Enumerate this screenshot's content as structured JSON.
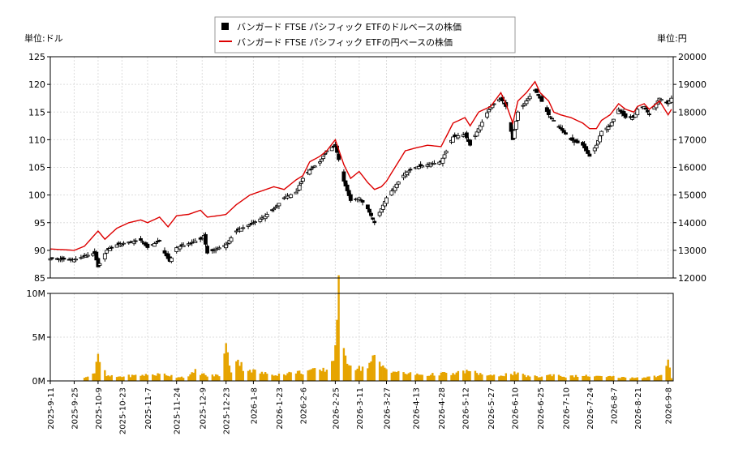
{
  "chart_data": [
    {
      "type": "candlestick",
      "left_unit_label": "単位:ドル",
      "right_unit_label": "単位:円",
      "ylim_left": [
        85,
        125
      ],
      "ylim_right": [
        12000,
        20000
      ],
      "yticks_left": [
        85,
        90,
        95,
        100,
        105,
        110,
        115,
        120,
        125
      ],
      "yticks_right": [
        12000,
        13000,
        14000,
        15000,
        16000,
        17000,
        18000,
        19000,
        20000
      ],
      "legend_placement": "top-center",
      "grid": true,
      "legend": [
        {
          "label": "バンガード FTSE パシフィック ETFのドルベースの株価",
          "color": "#000000",
          "marker": "square"
        },
        {
          "label": "バンガード FTSE パシフィック ETFの円ベースの株価",
          "color": "#dd0000",
          "marker": "line"
        }
      ],
      "usd_price_points": [
        [
          "2025-09-11",
          88.5
        ],
        [
          "2025-09-25",
          88.3
        ],
        [
          "2025-10-07",
          89.5
        ],
        [
          "2025-10-09",
          87.0
        ],
        [
          "2025-10-14",
          90.0
        ],
        [
          "2025-10-20",
          91.0
        ],
        [
          "2025-10-27",
          91.5
        ],
        [
          "2025-11-03",
          91.8
        ],
        [
          "2025-11-07",
          90.5
        ],
        [
          "2025-11-14",
          91.8
        ],
        [
          "2025-11-17",
          89.5
        ],
        [
          "2025-11-20",
          88.0
        ],
        [
          "2025-11-24",
          90.5
        ],
        [
          "2025-12-01",
          91.2
        ],
        [
          "2025-12-08",
          92.0
        ],
        [
          "2025-12-10",
          92.7
        ],
        [
          "2025-12-12",
          89.5
        ],
        [
          "2025-12-23",
          91.0
        ],
        [
          "2025-12-29",
          93.5
        ],
        [
          "2026-01-08",
          95.0
        ],
        [
          "2026-01-14",
          96.0
        ],
        [
          "2026-01-20",
          97.5
        ],
        [
          "2026-01-26",
          99.5
        ],
        [
          "2026-02-02",
          100.5
        ],
        [
          "2026-02-06",
          103.0
        ],
        [
          "2026-02-10",
          104.5
        ],
        [
          "2026-02-16",
          106.0
        ],
        [
          "2026-02-20",
          108.0
        ],
        [
          "2026-02-25",
          109.0
        ],
        [
          "2026-03-02",
          102.5
        ],
        [
          "2026-03-06",
          99.0
        ],
        [
          "2026-03-11",
          99.5
        ],
        [
          "2026-03-16",
          97.5
        ],
        [
          "2026-03-20",
          95.0
        ],
        [
          "2026-03-24",
          97.5
        ],
        [
          "2026-03-27",
          99.5
        ],
        [
          "2026-04-07",
          104.0
        ],
        [
          "2026-04-13",
          105.0
        ],
        [
          "2026-04-20",
          105.5
        ],
        [
          "2026-04-28",
          106.0
        ],
        [
          "2026-05-05",
          110.5
        ],
        [
          "2026-05-12",
          111.0
        ],
        [
          "2026-05-15",
          109.0
        ],
        [
          "2026-05-20",
          112.0
        ],
        [
          "2026-05-27",
          116.0
        ],
        [
          "2026-06-02",
          117.5
        ],
        [
          "2026-06-05",
          116.0
        ],
        [
          "2026-06-09",
          110.0
        ],
        [
          "2026-06-12",
          115.0
        ],
        [
          "2026-06-17",
          117.0
        ],
        [
          "2026-06-22",
          119.0
        ],
        [
          "2026-06-25",
          117.5
        ],
        [
          "2026-06-30",
          114.5
        ],
        [
          "2026-07-03",
          113.5
        ],
        [
          "2026-07-07",
          112.0
        ],
        [
          "2026-07-13",
          110.0
        ],
        [
          "2026-07-20",
          109.0
        ],
        [
          "2026-07-24",
          107.0
        ],
        [
          "2026-07-28",
          109.0
        ],
        [
          "2026-07-31",
          111.5
        ],
        [
          "2026-08-05",
          112.5
        ],
        [
          "2026-08-10",
          115.5
        ],
        [
          "2026-08-14",
          114.0
        ],
        [
          "2026-08-19",
          114.0
        ],
        [
          "2026-08-21",
          115.5
        ],
        [
          "2026-08-25",
          116.0
        ],
        [
          "2026-08-28",
          114.5
        ],
        [
          "2026-09-03",
          117.5
        ],
        [
          "2026-09-08",
          116.5
        ],
        [
          "2026-09-10",
          117.5
        ]
      ],
      "jpy_price_points": [
        [
          "2025-09-11",
          13050
        ],
        [
          "2025-09-25",
          13000
        ],
        [
          "2025-10-01",
          13150
        ],
        [
          "2025-10-09",
          13700
        ],
        [
          "2025-10-13",
          13400
        ],
        [
          "2025-10-20",
          13800
        ],
        [
          "2025-10-27",
          14000
        ],
        [
          "2025-11-03",
          14100
        ],
        [
          "2025-11-07",
          14000
        ],
        [
          "2025-11-14",
          14200
        ],
        [
          "2025-11-19",
          13850
        ],
        [
          "2025-11-24",
          14250
        ],
        [
          "2025-12-01",
          14300
        ],
        [
          "2025-12-08",
          14450
        ],
        [
          "2025-12-12",
          14200
        ],
        [
          "2025-12-18",
          14250
        ],
        [
          "2025-12-23",
          14300
        ],
        [
          "2025-12-29",
          14650
        ],
        [
          "2026-01-06",
          15000
        ],
        [
          "2026-01-13",
          15150
        ],
        [
          "2026-01-20",
          15300
        ],
        [
          "2026-01-26",
          15200
        ],
        [
          "2026-02-02",
          15550
        ],
        [
          "2026-02-06",
          15700
        ],
        [
          "2026-02-10",
          16200
        ],
        [
          "2026-02-16",
          16400
        ],
        [
          "2026-02-20",
          16600
        ],
        [
          "2026-02-25",
          17000
        ],
        [
          "2026-03-02",
          16100
        ],
        [
          "2026-03-06",
          15600
        ],
        [
          "2026-03-11",
          15850
        ],
        [
          "2026-03-16",
          15450
        ],
        [
          "2026-03-20",
          15200
        ],
        [
          "2026-03-24",
          15300
        ],
        [
          "2026-03-27",
          15500
        ],
        [
          "2026-04-07",
          16600
        ],
        [
          "2026-04-13",
          16700
        ],
        [
          "2026-04-20",
          16800
        ],
        [
          "2026-04-28",
          16750
        ],
        [
          "2026-05-05",
          17600
        ],
        [
          "2026-05-12",
          17800
        ],
        [
          "2026-05-15",
          17500
        ],
        [
          "2026-05-20",
          18000
        ],
        [
          "2026-05-27",
          18200
        ],
        [
          "2026-06-02",
          18700
        ],
        [
          "2026-06-05",
          18300
        ],
        [
          "2026-06-09",
          17600
        ],
        [
          "2026-06-12",
          18400
        ],
        [
          "2026-06-17",
          18700
        ],
        [
          "2026-06-22",
          19100
        ],
        [
          "2026-06-25",
          18700
        ],
        [
          "2026-06-30",
          18400
        ],
        [
          "2026-07-03",
          18000
        ],
        [
          "2026-07-07",
          17900
        ],
        [
          "2026-07-13",
          17800
        ],
        [
          "2026-07-20",
          17600
        ],
        [
          "2026-07-24",
          17400
        ],
        [
          "2026-07-28",
          17400
        ],
        [
          "2026-07-31",
          17700
        ],
        [
          "2026-08-05",
          17900
        ],
        [
          "2026-08-10",
          18300
        ],
        [
          "2026-08-14",
          18100
        ],
        [
          "2026-08-19",
          18000
        ],
        [
          "2026-08-21",
          18200
        ],
        [
          "2026-08-25",
          18300
        ],
        [
          "2026-08-28",
          18100
        ],
        [
          "2026-09-03",
          18400
        ],
        [
          "2026-09-08",
          17900
        ],
        [
          "2026-09-10",
          18100
        ]
      ],
      "volume_chart": {
        "type": "bar",
        "color": "#e6a400",
        "ylim": [
          0,
          10
        ],
        "yticks": [
          {
            "value": 0,
            "label": "0M"
          },
          {
            "value": 5,
            "label": "5M"
          },
          {
            "value": 10,
            "label": "10M"
          }
        ],
        "volume_points": [
          [
            "2025-09-11",
            0
          ],
          [
            "2025-10-01",
            0.4
          ],
          [
            "2025-10-07",
            1.0
          ],
          [
            "2025-10-09",
            2.8
          ],
          [
            "2025-10-14",
            0.6
          ],
          [
            "2025-10-20",
            0.5
          ],
          [
            "2025-11-03",
            0.7
          ],
          [
            "2025-11-17",
            0.8
          ],
          [
            "2025-11-24",
            0.5
          ],
          [
            "2025-12-01",
            0.5
          ],
          [
            "2025-12-05",
            1.2
          ],
          [
            "2025-12-12",
            0.6
          ],
          [
            "2025-12-19",
            0.7
          ],
          [
            "2025-12-23",
            4.0
          ],
          [
            "2025-12-26",
            1.2
          ],
          [
            "2025-12-29",
            2.8
          ],
          [
            "2026-01-02",
            1.6
          ],
          [
            "2026-01-08",
            1.2
          ],
          [
            "2026-01-14",
            0.9
          ],
          [
            "2026-01-20",
            0.8
          ],
          [
            "2026-01-26",
            0.8
          ],
          [
            "2026-02-02",
            1.1
          ],
          [
            "2026-02-06",
            1.0
          ],
          [
            "2026-02-10",
            1.3
          ],
          [
            "2026-02-16",
            1.2
          ],
          [
            "2026-02-20",
            1.4
          ],
          [
            "2026-02-24",
            2.6
          ],
          [
            "2026-02-27",
            10.4
          ],
          [
            "2026-03-02",
            3.2
          ],
          [
            "2026-03-06",
            2.0
          ],
          [
            "2026-03-11",
            1.5
          ],
          [
            "2026-03-16",
            1.8
          ],
          [
            "2026-03-20",
            2.8
          ],
          [
            "2026-03-24",
            1.8
          ],
          [
            "2026-03-27",
            1.5
          ],
          [
            "2026-04-03",
            1.0
          ],
          [
            "2026-04-13",
            0.8
          ],
          [
            "2026-04-20",
            0.7
          ],
          [
            "2026-04-28",
            0.9
          ],
          [
            "2026-05-05",
            0.8
          ],
          [
            "2026-05-12",
            1.2
          ],
          [
            "2026-05-20",
            0.9
          ],
          [
            "2026-05-27",
            0.6
          ],
          [
            "2026-06-02",
            0.7
          ],
          [
            "2026-06-10",
            0.9
          ],
          [
            "2026-06-17",
            0.6
          ],
          [
            "2026-06-25",
            0.5
          ],
          [
            "2026-07-03",
            0.8
          ],
          [
            "2026-07-10",
            0.5
          ],
          [
            "2026-07-17",
            0.6
          ],
          [
            "2026-07-24",
            0.6
          ],
          [
            "2026-07-31",
            0.5
          ],
          [
            "2026-08-07",
            0.5
          ],
          [
            "2026-08-14",
            0.4
          ],
          [
            "2026-08-21",
            0.4
          ],
          [
            "2026-08-28",
            0.5
          ],
          [
            "2026-09-04",
            0.6
          ],
          [
            "2026-09-08",
            2.2
          ],
          [
            "2026-09-10",
            0.4
          ]
        ]
      }
    }
  ],
  "x_axis": {
    "start": "2025-09-11",
    "end": "2026-09-11",
    "tick_labels": [
      "2025-9-11",
      "2025-9-25",
      "2025-10-9",
      "2025-10-23",
      "2025-11-7",
      "2025-11-24",
      "2025-12-9",
      "2025-12-23",
      "2026-1-8",
      "2026-1-23",
      "2026-2-6",
      "2026-2-25",
      "2026-3-11",
      "2026-3-27",
      "2026-4-13",
      "2026-4-28",
      "2026-5-12",
      "2026-5-27",
      "2026-6-10",
      "2026-6-25",
      "2026-7-10",
      "2026-7-24",
      "2026-8-7",
      "2026-8-21",
      "2026-9-8"
    ]
  }
}
